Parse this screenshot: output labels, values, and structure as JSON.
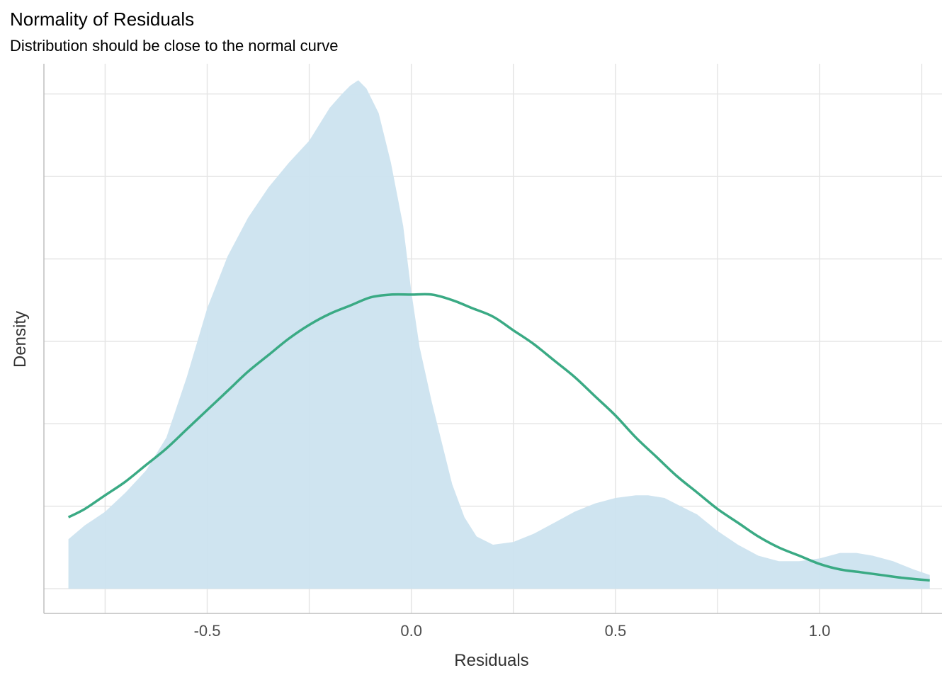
{
  "chart_data": {
    "type": "area",
    "title": "Normality of Residuals",
    "subtitle": "Distribution should be close to the normal curve",
    "xlabel": "Residuals",
    "ylabel": "Density",
    "xlim": [
      -0.9,
      1.3
    ],
    "ylim": [
      -0.09,
      1.91
    ],
    "x_ticks": [
      -0.5,
      0.0,
      0.5,
      1.0
    ],
    "x_tick_labels": [
      "-0.5",
      "0.0",
      "0.5",
      "1.0"
    ],
    "y_gridlines": [
      0,
      0.3,
      0.6,
      0.9,
      1.2,
      1.5,
      1.8
    ],
    "y_tick_labels_shown": false,
    "grid": true,
    "colors": {
      "density_fill": "#cce3ef",
      "normal_curve": "#3aaa84",
      "grid": "#e5e5e5",
      "axis": "#bfbfbf"
    },
    "series": [
      {
        "name": "",
        "kind": "density-area",
        "x": [
          -0.84,
          -0.8,
          -0.75,
          -0.7,
          -0.65,
          -0.6,
          -0.55,
          -0.5,
          -0.45,
          -0.4,
          -0.35,
          -0.3,
          -0.25,
          -0.2,
          -0.17,
          -0.15,
          -0.13,
          -0.11,
          -0.08,
          -0.05,
          -0.02,
          0.0,
          0.02,
          0.05,
          0.08,
          0.1,
          0.13,
          0.16,
          0.2,
          0.25,
          0.3,
          0.35,
          0.4,
          0.45,
          0.5,
          0.55,
          0.58,
          0.62,
          0.66,
          0.7,
          0.75,
          0.8,
          0.85,
          0.9,
          0.95,
          1.0,
          1.05,
          1.09,
          1.13,
          1.18,
          1.23,
          1.27
        ],
        "y": [
          0.18,
          0.23,
          0.28,
          0.35,
          0.43,
          0.55,
          0.77,
          1.02,
          1.21,
          1.35,
          1.46,
          1.55,
          1.63,
          1.75,
          1.8,
          1.83,
          1.85,
          1.82,
          1.73,
          1.55,
          1.32,
          1.08,
          0.88,
          0.68,
          0.5,
          0.38,
          0.26,
          0.19,
          0.16,
          0.17,
          0.2,
          0.24,
          0.28,
          0.31,
          0.33,
          0.34,
          0.34,
          0.33,
          0.3,
          0.27,
          0.21,
          0.16,
          0.12,
          0.1,
          0.1,
          0.11,
          0.13,
          0.13,
          0.12,
          0.1,
          0.07,
          0.05
        ]
      },
      {
        "name": "",
        "kind": "normal-curve",
        "x": [
          -0.84,
          -0.8,
          -0.75,
          -0.7,
          -0.65,
          -0.6,
          -0.55,
          -0.5,
          -0.45,
          -0.4,
          -0.35,
          -0.3,
          -0.25,
          -0.2,
          -0.15,
          -0.1,
          -0.05,
          0.0,
          0.05,
          0.1,
          0.15,
          0.2,
          0.25,
          0.3,
          0.35,
          0.4,
          0.45,
          0.5,
          0.55,
          0.6,
          0.65,
          0.7,
          0.75,
          0.8,
          0.85,
          0.9,
          0.95,
          1.0,
          1.05,
          1.1,
          1.15,
          1.2,
          1.27
        ],
        "y": [
          0.26,
          0.29,
          0.34,
          0.39,
          0.45,
          0.51,
          0.58,
          0.65,
          0.72,
          0.79,
          0.85,
          0.91,
          0.96,
          1.0,
          1.03,
          1.06,
          1.07,
          1.07,
          1.07,
          1.05,
          1.02,
          0.99,
          0.94,
          0.89,
          0.83,
          0.77,
          0.7,
          0.63,
          0.55,
          0.48,
          0.41,
          0.35,
          0.29,
          0.24,
          0.19,
          0.15,
          0.12,
          0.09,
          0.07,
          0.06,
          0.05,
          0.04,
          0.03
        ]
      }
    ]
  }
}
